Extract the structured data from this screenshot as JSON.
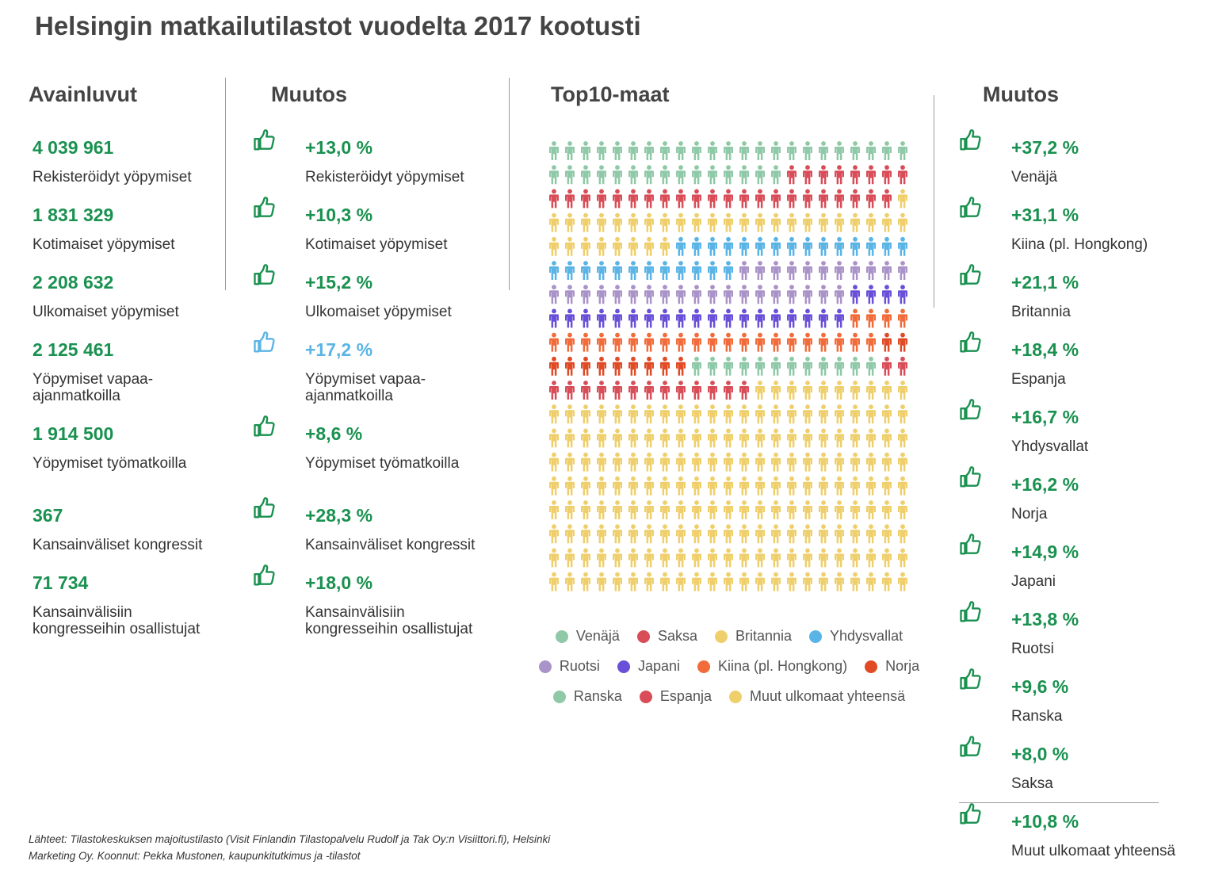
{
  "title": "Helsingin matkailutilastot vuodelta 2017 kootusti",
  "headings": {
    "key_figures": "Avainluvut",
    "change_left": "Muutos",
    "top10": "Top10-maat",
    "change_right": "Muutos"
  },
  "key_figures": [
    {
      "value": "4 039 961",
      "label": "Rekisteröidyt yöpymiset"
    },
    {
      "value": "1 831 329",
      "label": "Kotimaiset yöpymiset"
    },
    {
      "value": "2 208 632",
      "label": "Ulkomaiset yöpymiset"
    },
    {
      "value": "2 125 461",
      "label": "Yöpymiset vapaa-\najanmatkoilla"
    },
    {
      "value": "1 914 500",
      "label": "Yöpymiset työmatkoilla"
    },
    {
      "value": "367",
      "label": "Kansainväliset kongressit"
    },
    {
      "value": "71 734",
      "label": "Kansainvälisiin\nkongresseihin osallistujat"
    }
  ],
  "key_changes": [
    {
      "value": "+13,0 %",
      "label": "Rekisteröidyt yöpymiset"
    },
    {
      "value": "+10,3 %",
      "label": "Kotimaiset yöpymiset"
    },
    {
      "value": "+15,2 %",
      "label": "Ulkomaiset yöpymiset"
    },
    {
      "value": "+17,2 %",
      "label": "Yöpymiset vapaa-\najanmatkoilla"
    },
    {
      "value": "+8,6 %",
      "label": "Yöpymiset työmatkoilla"
    },
    {
      "value": "+28,3 %",
      "label": "Kansainväliset kongressit"
    },
    {
      "value": "+18,0 %",
      "label": "Kansainvälisiin\nkongresseihin osallistujat"
    }
  ],
  "country_changes": [
    {
      "value": "+37,2 %",
      "label": "Venäjä"
    },
    {
      "value": "+31,1 %",
      "label": "Kiina (pl. Hongkong)"
    },
    {
      "value": "+21,1 %",
      "label": "Britannia"
    },
    {
      "value": "+18,4 %",
      "label": "Espanja"
    },
    {
      "value": "+16,7 %",
      "label": "Yhdysvallat"
    },
    {
      "value": "+16,2 %",
      "label": "Norja"
    },
    {
      "value": "+14,9 %",
      "label": "Japani"
    },
    {
      "value": "+13,8 %",
      "label": "Ruotsi"
    },
    {
      "value": "+9,6 %",
      "label": "Ranska"
    },
    {
      "value": "+8,0 %",
      "label": "Saksa"
    },
    {
      "value": "+10,8 %",
      "label": "Muut ulkomaat yhteensä"
    }
  ],
  "colors": {
    "accent_green": "#1a9150",
    "accent_blue": "#5ab4e5",
    "text_dark": "#444444"
  },
  "chart_data": {
    "type": "waffle",
    "title": "Top10-maat",
    "columns": 23,
    "rows": 19,
    "unit": "icon",
    "series": [
      {
        "name": "Venäjä",
        "icons": 38,
        "color": "#8fc9a8"
      },
      {
        "name": "Saksa",
        "icons": 30,
        "color": "#d84d57"
      },
      {
        "name": "Britannia",
        "icons": 32,
        "color": "#efcf6b"
      },
      {
        "name": "Yhdysvallat",
        "icons": 27,
        "color": "#5ab4e5"
      },
      {
        "name": "Ruotsi",
        "icons": 30,
        "color": "#a993c8"
      },
      {
        "name": "Japani",
        "icons": 23,
        "color": "#6a4fd8"
      },
      {
        "name": "Kiina (pl. Hongkong)",
        "icons": 25,
        "color": "#f26b3a"
      },
      {
        "name": "Norja",
        "icons": 11,
        "color": "#e04a25"
      },
      {
        "name": "Ranska",
        "icons": 12,
        "color": "#8fc9a8"
      },
      {
        "name": "Espanja",
        "icons": 15,
        "color": "#d84d57"
      },
      {
        "name": "Muut ulkomaat yhteensä",
        "icons": 194,
        "color": "#efcf6b"
      }
    ],
    "legend_rows": [
      [
        "Venäjä",
        "Saksa",
        "Britannia",
        "Yhdysvallat"
      ],
      [
        "Ruotsi",
        "Japani",
        "Kiina (pl. Hongkong)",
        "Norja"
      ],
      [
        "Ranska",
        "Espanja",
        "Muut ulkomaat yhteensä"
      ]
    ]
  },
  "source": "Lähteet: Tilastokeskuksen majoitustilasto (Visit Finlandin Tilastopalvelu Rudolf ja Tak Oy:n Visiittori.fi), Helsinki Marketing Oy. Koonnut: Pekka Mustonen, kaupunkitutkimus ja -tilastot"
}
